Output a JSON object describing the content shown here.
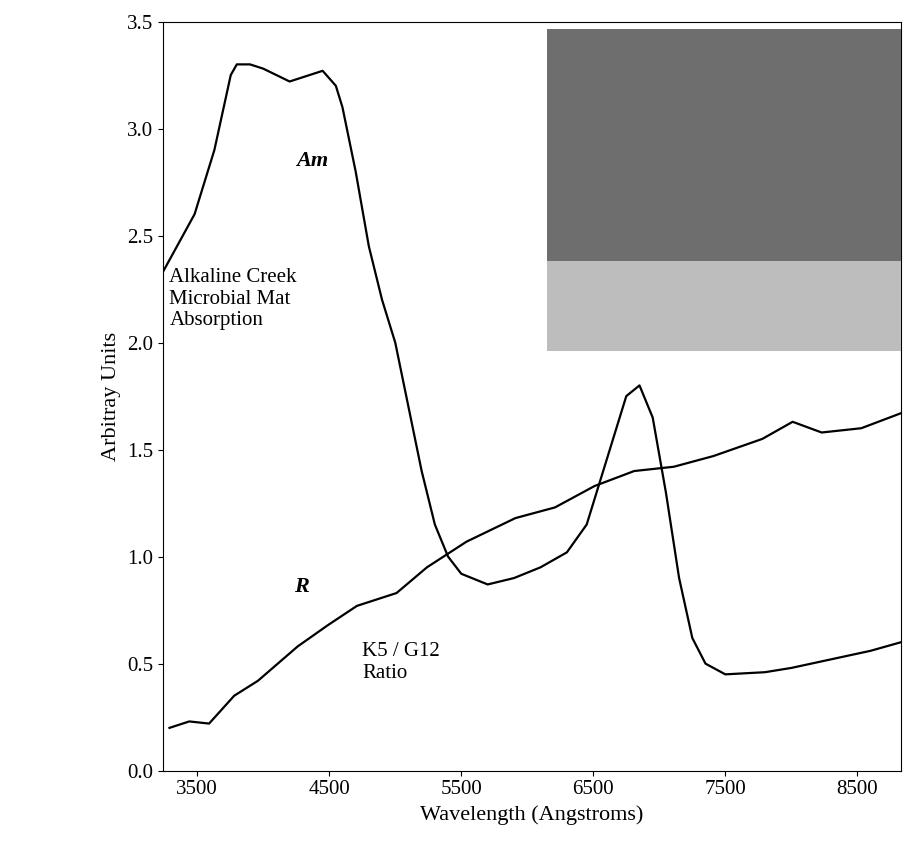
{
  "chart_data": {
    "type": "line",
    "xlabel": "Wavelength (Angstroms)",
    "ylabel": "Arbitray Units",
    "annotations": [
      "Alkaline Creek\nMicrobial Mat\nAbsorption",
      "K5 / G12\nRatio"
    ],
    "xlim": [
      3240,
      8830
    ],
    "xticks": [
      3500,
      4500,
      5500,
      6500,
      7500,
      8500
    ],
    "ylim": [
      0.0,
      3.5
    ],
    "yticks": [
      0.0,
      0.5,
      1.0,
      1.5,
      2.0,
      2.5,
      3.0,
      3.5
    ],
    "grid": false,
    "series": [
      {
        "name": "Am",
        "color": "#000000",
        "x": [
          3240,
          3480,
          3630,
          3754,
          3800,
          3900,
          4000,
          4200,
          4350,
          4450,
          4550,
          4600,
          4700,
          4800,
          4900,
          5000,
          5100,
          5200,
          5300,
          5400,
          5500,
          5700,
          5900,
          6100,
          6300,
          6450,
          6550,
          6650,
          6750,
          6850,
          6950,
          7050,
          7150,
          7250,
          7350,
          7500,
          7800,
          8000,
          8300,
          8600,
          8830
        ],
        "values": [
          2.33,
          2.6,
          2.9,
          3.25,
          3.3,
          3.3,
          3.28,
          3.22,
          3.25,
          3.27,
          3.2,
          3.1,
          2.8,
          2.45,
          2.2,
          2.0,
          1.7,
          1.4,
          1.15,
          1.0,
          0.92,
          0.87,
          0.9,
          0.95,
          1.02,
          1.15,
          1.35,
          1.55,
          1.75,
          1.8,
          1.65,
          1.3,
          0.9,
          0.62,
          0.5,
          0.45,
          0.46,
          0.48,
          0.52,
          0.56,
          0.6
        ]
      },
      {
        "name": "R",
        "color": "#000000",
        "x": [
          3290,
          3440,
          3590,
          3780,
          3960,
          4260,
          4490,
          4710,
          5010,
          5240,
          5540,
          5910,
          6210,
          6510,
          6810,
          7110,
          7410,
          7780,
          8010,
          8230,
          8530,
          8830
        ],
        "values": [
          0.2,
          0.23,
          0.22,
          0.35,
          0.42,
          0.58,
          0.68,
          0.77,
          0.83,
          0.95,
          1.07,
          1.18,
          1.23,
          1.33,
          1.4,
          1.42,
          1.47,
          1.55,
          1.63,
          1.58,
          1.6,
          1.67
        ]
      }
    ]
  }
}
